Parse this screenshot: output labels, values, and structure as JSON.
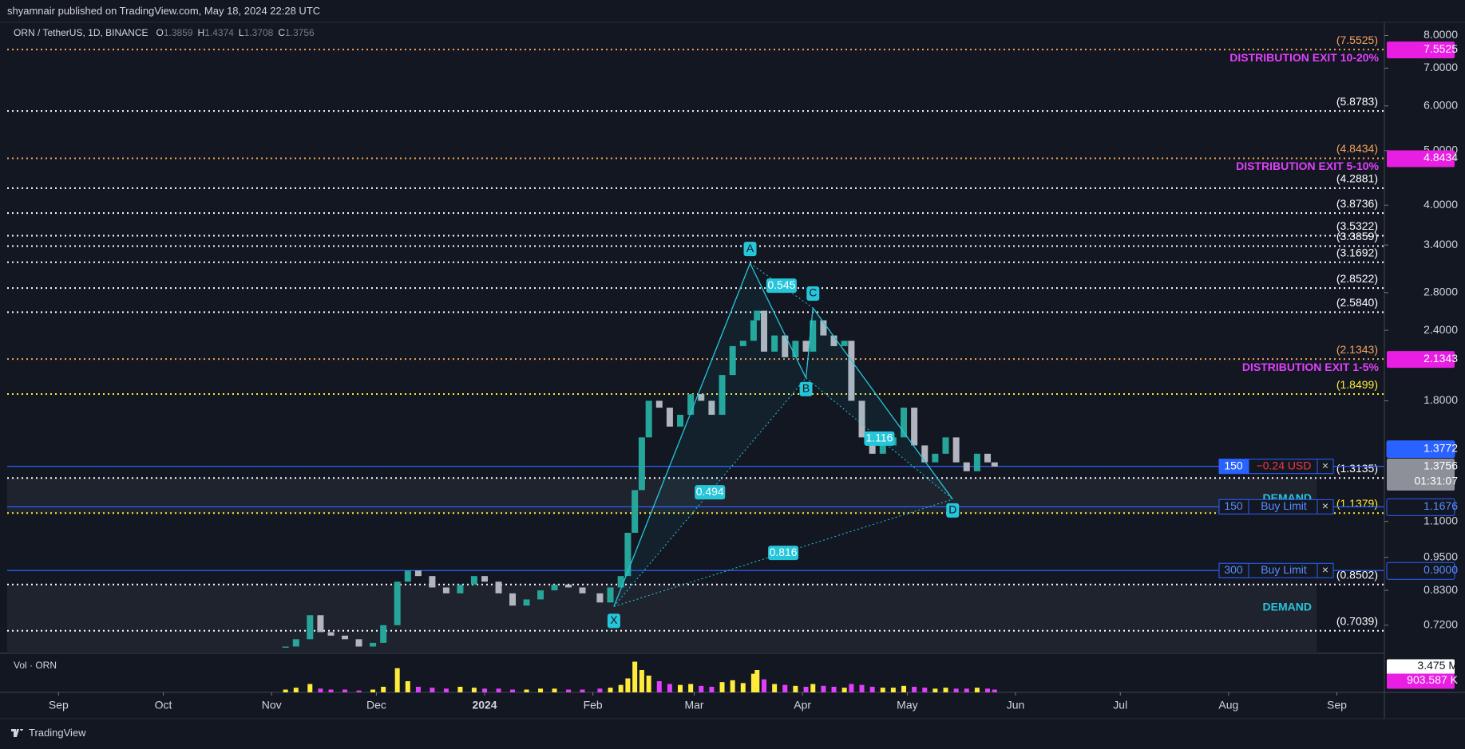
{
  "header": {
    "publisher": "shyamnair published on TradingView.com, May 18, 2024 22:28 UTC",
    "footer": "TradingView"
  },
  "chart_data": {
    "type": "candlestick",
    "log_scale": true,
    "title": "ORN / TetherUS, 1D, BINANCE",
    "ohlc": [
      {
        "label": "O",
        "value": 1.3859
      },
      {
        "label": "H",
        "value": 1.4374
      },
      {
        "label": "L",
        "value": 1.3708
      },
      {
        "label": "C",
        "value": 1.3756
      }
    ],
    "volume_title": "Vol · ORN",
    "up_color": "#26a69a",
    "down_color": "#b2b5be",
    "vol_up_color": "#ffeb3b",
    "vol_down_color": "#e040fb",
    "x": [
      65,
      68,
      72,
      75,
      78,
      82,
      86,
      90,
      93,
      97,
      100,
      103,
      107,
      111,
      115,
      119,
      122,
      126,
      130,
      134,
      138,
      142,
      146,
      150,
      155,
      158,
      161,
      163,
      165,
      167,
      169,
      172,
      175,
      178,
      181,
      184,
      187,
      190,
      193,
      196,
      199,
      200,
      202,
      205,
      208,
      211,
      214,
      216,
      219,
      222,
      225,
      227,
      230,
      233,
      236,
      239,
      242,
      245,
      248,
      251,
      254,
      257,
      260,
      263,
      266,
      268
    ],
    "close": [
      0.66,
      0.68,
      0.75,
      0.7,
      0.69,
      0.68,
      0.66,
      0.67,
      0.72,
      0.86,
      0.9,
      0.88,
      0.84,
      0.82,
      0.85,
      0.88,
      0.86,
      0.82,
      0.78,
      0.8,
      0.83,
      0.85,
      0.84,
      0.82,
      0.79,
      0.84,
      0.88,
      1.05,
      1.25,
      1.55,
      1.8,
      1.75,
      1.62,
      1.7,
      1.85,
      1.8,
      1.7,
      2.0,
      2.25,
      2.3,
      2.5,
      2.6,
      2.2,
      2.35,
      2.15,
      2.3,
      2.2,
      2.5,
      2.35,
      2.25,
      2.3,
      1.8,
      1.55,
      1.45,
      1.5,
      1.55,
      1.75,
      1.5,
      1.4,
      1.45,
      1.55,
      1.4,
      1.35,
      1.45,
      1.4,
      1.3756
    ],
    "volume": [
      0.3,
      0.5,
      0.9,
      0.4,
      0.3,
      0.3,
      0.2,
      0.3,
      0.6,
      2.6,
      1.2,
      0.6,
      0.5,
      0.4,
      0.6,
      0.5,
      0.4,
      0.4,
      0.3,
      0.3,
      0.4,
      0.4,
      0.3,
      0.3,
      0.4,
      0.5,
      0.8,
      1.5,
      3.3,
      2.4,
      1.8,
      1.2,
      0.9,
      0.8,
      0.9,
      0.7,
      0.6,
      1.1,
      1.3,
      1.0,
      2.0,
      2.4,
      1.4,
      0.9,
      0.8,
      0.7,
      0.6,
      0.9,
      0.7,
      0.6,
      0.5,
      0.9,
      0.8,
      0.6,
      0.5,
      0.5,
      0.7,
      0.6,
      0.5,
      0.4,
      0.5,
      0.4,
      0.4,
      0.5,
      0.4,
      0.3
    ],
    "vlim": [
      0,
      4.2
    ],
    "volume_tags": [
      {
        "value": 3.475,
        "label": "3.475 M"
      },
      {
        "value": 0.903587,
        "label": "903.587 K"
      }
    ],
    "xlim": [
      -14.7,
      379.6
    ],
    "xticks": [
      {
        "value": 0,
        "label": "Sep"
      },
      {
        "value": 30,
        "label": "Oct"
      },
      {
        "value": 61,
        "label": "Nov"
      },
      {
        "value": 91,
        "label": "Dec"
      },
      {
        "value": 122,
        "label": "2024"
      },
      {
        "value": 153,
        "label": "Feb"
      },
      {
        "value": 182,
        "label": "Mar"
      },
      {
        "value": 213,
        "label": "Apr"
      },
      {
        "value": 243,
        "label": "May"
      },
      {
        "value": 274,
        "label": "Jun"
      },
      {
        "value": 304,
        "label": "Jul"
      },
      {
        "value": 335,
        "label": "Aug"
      },
      {
        "value": 366,
        "label": "Sep"
      }
    ],
    "ylim": [
      0.642,
      8.44
    ],
    "yticks": [
      {
        "value": 8,
        "label": "8.0000"
      },
      {
        "value": 7,
        "label": "7.0000"
      },
      {
        "value": 6,
        "label": "6.0000"
      },
      {
        "value": 5,
        "label": "5.0000"
      },
      {
        "value": 4,
        "label": "4.0000"
      },
      {
        "value": 3.4,
        "label": "3.4000"
      },
      {
        "value": 2.8,
        "label": "2.8000"
      },
      {
        "value": 2.4,
        "label": "2.4000"
      },
      {
        "value": 1.8,
        "label": "1.8000"
      },
      {
        "value": 1.1,
        "label": "1.1000"
      },
      {
        "value": 0.95,
        "label": "0.9500"
      },
      {
        "value": 0.83,
        "label": "0.8300"
      },
      {
        "value": 0.72,
        "label": "0.7200"
      }
    ],
    "levels": [
      {
        "value": 7.5525,
        "label": "(7.5525)",
        "color": "#f7a35c"
      },
      {
        "value": 5.8783,
        "label": "(5.8783)",
        "color": "#ffffff"
      },
      {
        "value": 4.8434,
        "label": "(4.8434)",
        "color": "#f7a35c"
      },
      {
        "value": 4.2881,
        "label": "(4.2881)",
        "color": "#ffffff"
      },
      {
        "value": 3.8736,
        "label": "(3.8736)",
        "color": "#ffffff"
      },
      {
        "value": 3.5322,
        "label": "(3.5322)",
        "color": "#ffffff"
      },
      {
        "value": 3.3859,
        "label": "(3.3859)",
        "color": "#ffffff"
      },
      {
        "value": 3.1692,
        "label": "(3.1692)",
        "color": "#ffffff"
      },
      {
        "value": 2.8522,
        "label": "(2.8522)",
        "color": "#ffffff"
      },
      {
        "value": 2.584,
        "label": "(2.5840)",
        "color": "#ffffff"
      },
      {
        "value": 2.1343,
        "label": "(2.1343)",
        "color": "#f7a35c"
      },
      {
        "value": 1.8499,
        "label": "(1.8499)",
        "color": "#ffeb3b"
      },
      {
        "value": 1.3135,
        "label": "(1.3135)",
        "color": "#ffffff"
      },
      {
        "value": 1.1379,
        "label": "(1.1379)",
        "color": "#ffeb3b"
      },
      {
        "value": 0.8502,
        "label": "(0.8502)",
        "color": "#ffffff"
      },
      {
        "value": 0.7039,
        "label": "(0.7039)",
        "color": "#ffffff"
      }
    ],
    "exit_tags": [
      {
        "value": 7.5525,
        "label": "7.5525",
        "text": "DISTRIBUTION EXIT 10-20%"
      },
      {
        "value": 4.8434,
        "label": "4.8434",
        "text": "DISTRIBUTION EXIT 5-10%"
      },
      {
        "value": 2.1343,
        "label": "2.1343",
        "text": "DISTRIBUTION EXIT 1-5%"
      }
    ],
    "zones": [
      {
        "label": "DEMAND"
      },
      {
        "label": "DEMAND"
      }
    ],
    "orders": [
      {
        "qty": 150,
        "text": "−0.24 USD",
        "price": {
          "value": 1.3772,
          "label": "1.3772"
        }
      },
      {
        "qty": 150,
        "text": "Buy Limit",
        "price": {
          "value": 1.1676,
          "label": "1.1676"
        }
      },
      {
        "qty": 300,
        "text": "Buy Limit",
        "price": {
          "value": 0.9,
          "label": "0.9000"
        }
      }
    ],
    "order_close": "×",
    "last_price": 1.3756,
    "countdown": "01:31:07",
    "pattern": {
      "color": "#26c6da",
      "points": [
        {
          "label": "X",
          "x": 159,
          "y": 0.777
        },
        {
          "label": "A",
          "x": 198,
          "y": 3.155
        },
        {
          "label": "B",
          "x": 214,
          "y": 1.976
        },
        {
          "label": "C",
          "x": 216,
          "y": 2.63
        },
        {
          "label": "D",
          "x": 256,
          "y": 1.204
        }
      ],
      "ratios": [
        {
          "label": "0.545",
          "from": 1,
          "to": 3
        },
        {
          "label": "0.494",
          "from": 0,
          "to": 2
        },
        {
          "label": "1.116",
          "from": 2,
          "to": 4
        },
        {
          "label": "0.816",
          "from": 0,
          "to": 4
        }
      ]
    }
  }
}
